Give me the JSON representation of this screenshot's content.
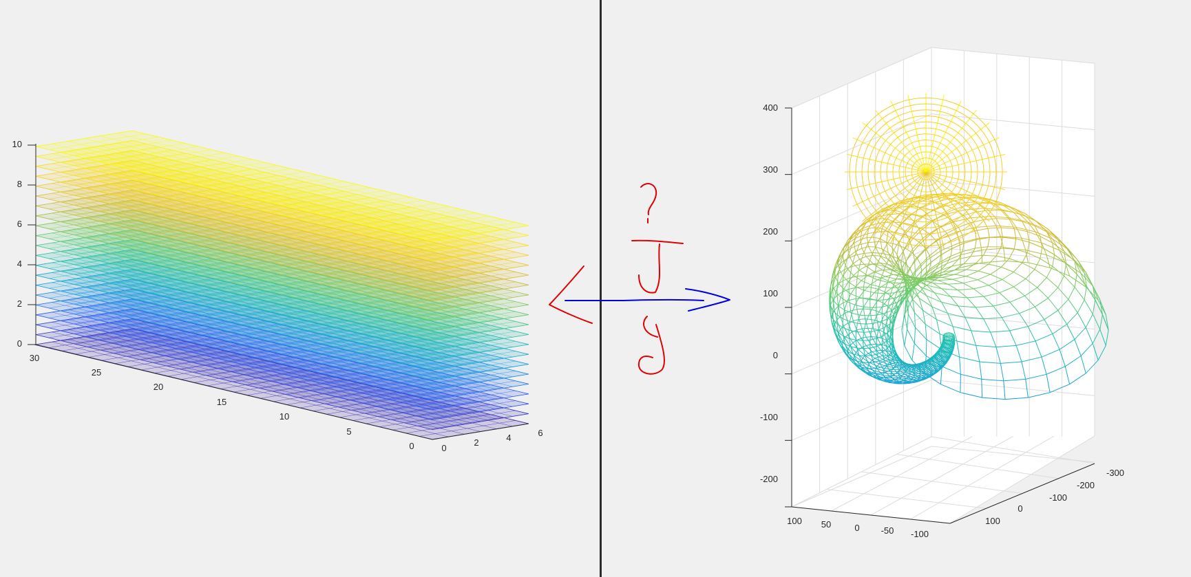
{
  "colors": {
    "background": "#f0f0f0",
    "divider": "#2b2b2b",
    "axis": "#262626",
    "grid": "#dcdcdc",
    "annotation_red": "#e00000",
    "annotation_blue": "#0000e0",
    "colormap": [
      "#3e26a8",
      "#2e5cf5",
      "#1a9ae0",
      "#1fbfb5",
      "#6cce6b",
      "#d2bb3b",
      "#fbd425",
      "#f9fb0e"
    ]
  },
  "annotation": {
    "description": "handwritten arrows and '?' drawn between the two panels",
    "icons": [
      "left-arrow-icon",
      "right-arrow-icon",
      "question-mark-icon"
    ]
  },
  "chart_data": [
    {
      "type": "surface-wireframe",
      "description": "stack of horizontal mesh layers, colored by height",
      "axes": {
        "x": {
          "range": [
            0,
            6
          ],
          "ticks": [
            "0",
            "2",
            "4",
            "6"
          ]
        },
        "y": {
          "range": [
            0,
            30
          ],
          "ticks": [
            "0",
            "5",
            "10",
            "15",
            "20",
            "25",
            "30"
          ]
        },
        "z": {
          "range": [
            0,
            10
          ],
          "ticks": [
            "0",
            "2",
            "4",
            "6",
            "8",
            "10"
          ]
        }
      },
      "layers": {
        "count": 21,
        "z_from": 0,
        "z_to": 10
      },
      "grid": false,
      "box": false
    },
    {
      "type": "surface-wireframe",
      "description": "spiral shell (horn) mesh, colored by height",
      "axes": {
        "x": {
          "range": [
            -100,
            100
          ],
          "ticks": [
            "100",
            "50",
            "0",
            "-50",
            "-100"
          ]
        },
        "y": {
          "range": [
            -300,
            100
          ],
          "ticks": [
            "-300",
            "-200",
            "-100",
            "0",
            "100"
          ]
        },
        "z": {
          "range": [
            -200,
            400
          ],
          "ticks": [
            "-200",
            "-100",
            "0",
            "100",
            "200",
            "300",
            "400"
          ]
        }
      },
      "grid": true,
      "box": true
    }
  ]
}
